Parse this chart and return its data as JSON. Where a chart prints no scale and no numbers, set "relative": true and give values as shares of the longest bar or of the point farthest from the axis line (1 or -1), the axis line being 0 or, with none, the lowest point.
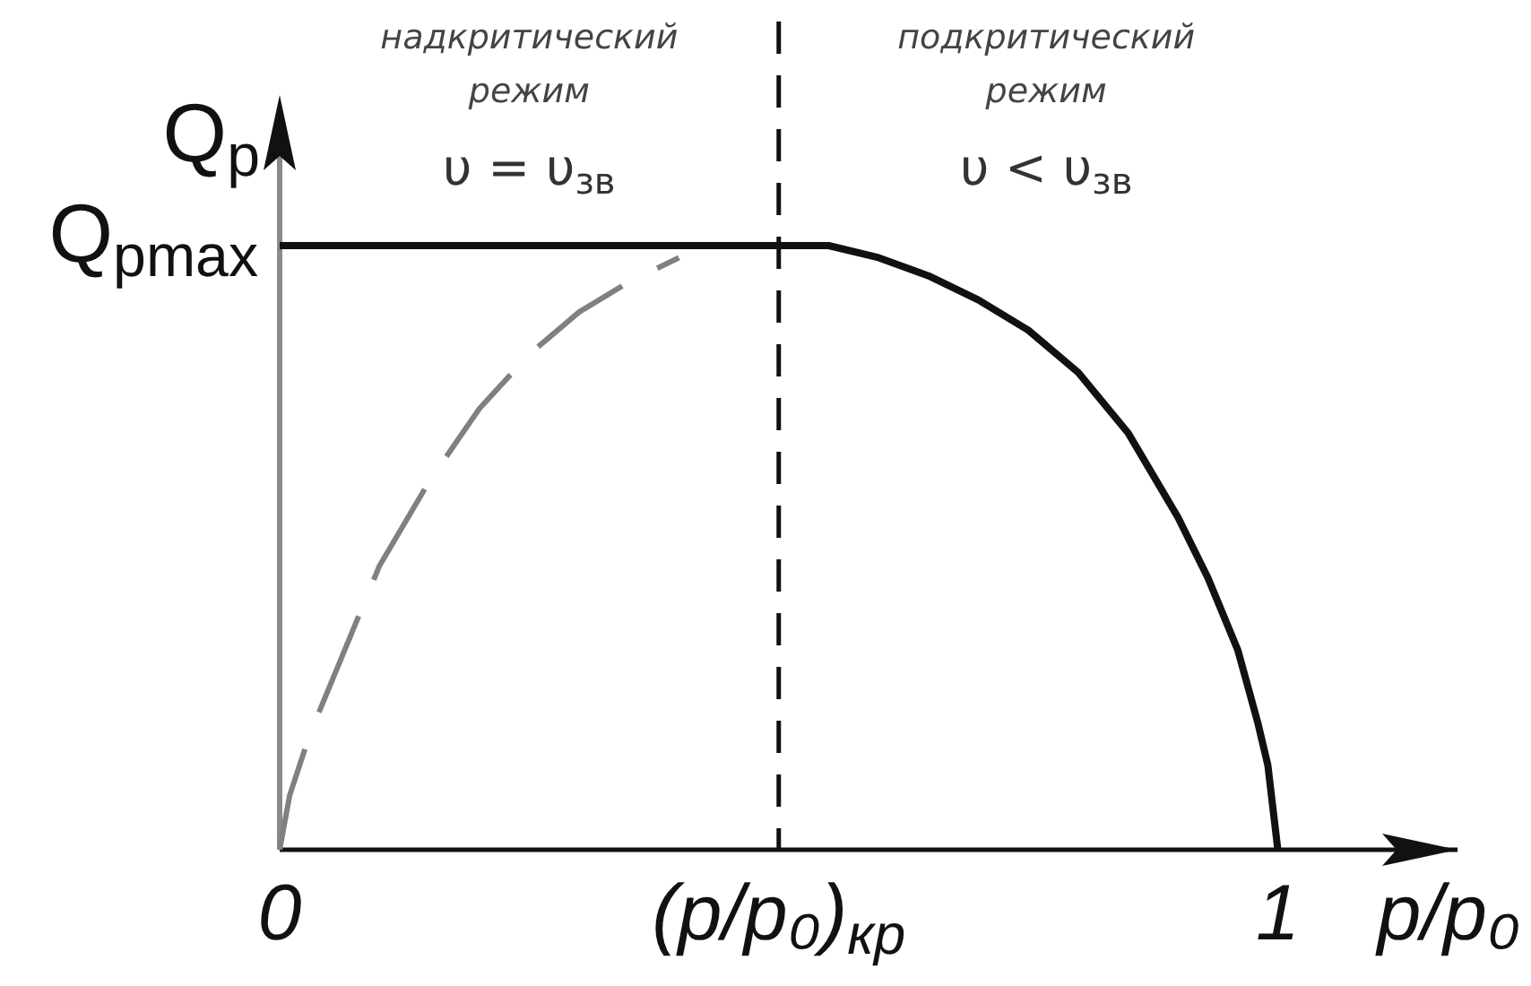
{
  "chart_data": {
    "type": "line",
    "relative": true,
    "ylabel": "Q$_{p}$",
    "xlabel": "p/p₀",
    "xlim": [
      0,
      1.18
    ],
    "xticks": [
      0,
      {
        "value": 0.5,
        "label": "(p/p₀)$_{кр}$"
      },
      1
    ],
    "marker": "none",
    "series": [
      {
        "color": "#111111",
        "line_style": "solid",
        "x": [
          0,
          0.5,
          0.55,
          0.6,
          0.65,
          0.7,
          0.75,
          0.8,
          0.85,
          0.9,
          0.93,
          0.96,
          0.98,
          0.99,
          1
        ],
        "values": [
          1,
          1,
          1,
          0.98,
          0.95,
          0.91,
          0.86,
          0.79,
          0.69,
          0.55,
          0.45,
          0.33,
          0.21,
          0.14,
          0
        ]
      },
      {
        "color": "#808080",
        "line_style": "dashed",
        "x": [
          0,
          0.01,
          0.03,
          0.06,
          0.1,
          0.15,
          0.2,
          0.25,
          0.3,
          0.35,
          0.4
        ],
        "values": [
          0,
          0.09,
          0.19,
          0.31,
          0.47,
          0.61,
          0.73,
          0.82,
          0.89,
          0.94,
          0.98
        ]
      }
    ],
    "ref_lines": [
      {
        "axis": "x",
        "value": 0.5,
        "color": "#111111",
        "line_style": "dashed"
      }
    ],
    "annotations": [
      {
        "text": "Q$_{pmax}$",
        "x": 0,
        "y": 1
      },
      "надкритический режим",
      "υ = υ$_{зв}$",
      "подкритический режим",
      "υ < υ$_{зв}$"
    ]
  }
}
